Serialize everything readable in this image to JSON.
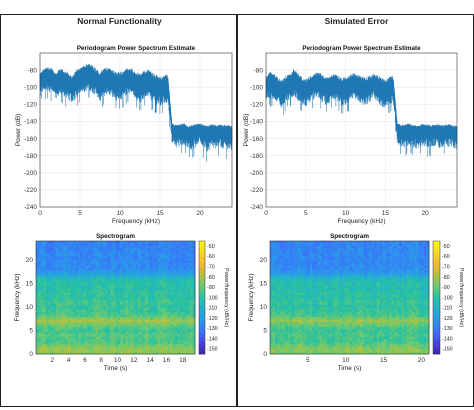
{
  "columns": [
    {
      "title": "Normal Functionality"
    },
    {
      "title": "Simulated Error"
    }
  ],
  "colors": {
    "psd_line": "#1f77b4",
    "grid": "#e6e6e6",
    "axis": "#333333",
    "colormap": [
      "#3e26a8",
      "#4745e1",
      "#3a73fb",
      "#2b98ea",
      "#24b0d0",
      "#26c1a3",
      "#6cc971",
      "#b6c13c",
      "#f5b834",
      "#f8d826",
      "#f9fb15"
    ]
  },
  "chart_data": [
    {
      "type": "line",
      "panel": "Normal Functionality",
      "title": "Periodogram Power Spectrum Estimate",
      "xlabel": "Frequency (kHz)",
      "ylabel": "Power (dB)",
      "xlim": [
        0,
        24
      ],
      "ylim": [
        -240,
        -60
      ],
      "xticks": [
        0,
        5,
        10,
        15,
        20
      ],
      "yticks": [
        -80,
        -100,
        -120,
        -140,
        -160,
        -180,
        -200,
        -220,
        -240
      ],
      "grid": true,
      "series": [
        {
          "x": [
            0,
            0.5,
            1,
            1.5,
            2,
            2.5,
            3,
            3.5,
            4,
            4.5,
            5,
            5.5,
            6,
            6.5,
            7,
            7.5,
            8,
            8.5,
            9,
            9.5,
            10,
            10.5,
            11,
            11.5,
            12,
            12.5,
            13,
            13.5,
            14,
            14.5,
            15,
            15.5,
            16,
            16.5,
            17,
            17.5,
            18,
            18.5,
            19,
            19.5,
            20,
            20.5,
            21,
            21.5,
            22,
            22.5,
            23,
            23.5,
            24
          ],
          "y": [
            -92,
            -88,
            -86,
            -88,
            -95,
            -89,
            -91,
            -94,
            -98,
            -91,
            -89,
            -87,
            -84,
            -86,
            -90,
            -95,
            -90,
            -88,
            -91,
            -94,
            -94,
            -92,
            -88,
            -90,
            -94,
            -96,
            -93,
            -91,
            -95,
            -97,
            -99,
            -98,
            -96,
            -148,
            -150,
            -149,
            -148,
            -151,
            -150,
            -149,
            -148,
            -150,
            -151,
            -149,
            -150,
            -149,
            -150,
            -150,
            -151
          ],
          "band_high": [
            -84,
            -78,
            -76,
            -78,
            -84,
            -77,
            -80,
            -82,
            -86,
            -80,
            -77,
            -74,
            -72,
            -74,
            -78,
            -82,
            -78,
            -76,
            -79,
            -82,
            -82,
            -80,
            -76,
            -78,
            -82,
            -84,
            -81,
            -79,
            -83,
            -85,
            -87,
            -86,
            -84,
            -142,
            -144,
            -143,
            -142,
            -145,
            -144,
            -143,
            -142,
            -144,
            -145,
            -143,
            -144,
            -143,
            -144,
            -144,
            -145
          ],
          "band_low": [
            -108,
            -112,
            -110,
            -115,
            -120,
            -116,
            -118,
            -122,
            -130,
            -120,
            -115,
            -112,
            -110,
            -113,
            -118,
            -125,
            -118,
            -114,
            -118,
            -124,
            -124,
            -120,
            -114,
            -116,
            -122,
            -126,
            -120,
            -117,
            -124,
            -128,
            -130,
            -128,
            -125,
            -172,
            -180,
            -176,
            -175,
            -178,
            -182,
            -177,
            -175,
            -179,
            -186,
            -176,
            -181,
            -178,
            -180,
            -182,
            -184
          ]
        }
      ]
    },
    {
      "type": "line",
      "panel": "Simulated Error",
      "title": "Periodogram Power Spectrum Estimate",
      "xlabel": "Frequency (kHz)",
      "ylabel": "Power (dB)",
      "xlim": [
        0,
        24
      ],
      "ylim": [
        -240,
        -60
      ],
      "xticks": [
        0,
        5,
        10,
        15,
        20
      ],
      "yticks": [
        -80,
        -100,
        -120,
        -140,
        -160,
        -180,
        -200,
        -220,
        -240
      ],
      "grid": true,
      "series": [
        {
          "x": [
            0,
            0.5,
            1,
            1.5,
            2,
            2.5,
            3,
            3.5,
            4,
            4.5,
            5,
            5.5,
            6,
            6.5,
            7,
            7.5,
            8,
            8.5,
            9,
            9.5,
            10,
            10.5,
            11,
            11.5,
            12,
            12.5,
            13,
            13.5,
            14,
            14.5,
            15,
            15.5,
            16,
            16.5,
            17,
            17.5,
            18,
            18.5,
            19,
            19.5,
            20,
            20.5,
            21,
            21.5,
            22,
            22.5,
            23,
            23.5,
            24
          ],
          "y": [
            -98,
            -94,
            -96,
            -100,
            -104,
            -98,
            -96,
            -93,
            -96,
            -100,
            -102,
            -99,
            -96,
            -94,
            -97,
            -100,
            -99,
            -96,
            -98,
            -101,
            -100,
            -98,
            -95,
            -97,
            -99,
            -101,
            -98,
            -96,
            -98,
            -101,
            -103,
            -100,
            -98,
            -148,
            -150,
            -149,
            -148,
            -150,
            -151,
            -149,
            -149,
            -150,
            -150,
            -149,
            -150,
            -150,
            -149,
            -150,
            -151
          ],
          "band_high": [
            -88,
            -82,
            -84,
            -88,
            -92,
            -86,
            -84,
            -79,
            -82,
            -88,
            -90,
            -87,
            -84,
            -81,
            -85,
            -88,
            -87,
            -84,
            -86,
            -89,
            -88,
            -86,
            -83,
            -85,
            -87,
            -89,
            -86,
            -84,
            -86,
            -89,
            -91,
            -88,
            -86,
            -142,
            -144,
            -143,
            -142,
            -144,
            -145,
            -143,
            -143,
            -144,
            -144,
            -143,
            -144,
            -144,
            -143,
            -144,
            -145
          ],
          "band_low": [
            -118,
            -120,
            -122,
            -126,
            -132,
            -124,
            -120,
            -118,
            -122,
            -128,
            -130,
            -125,
            -120,
            -118,
            -124,
            -128,
            -126,
            -120,
            -124,
            -130,
            -128,
            -124,
            -119,
            -122,
            -126,
            -130,
            -124,
            -120,
            -124,
            -130,
            -132,
            -128,
            -124,
            -172,
            -176,
            -178,
            -175,
            -177,
            -180,
            -176,
            -177,
            -178,
            -176,
            -177,
            -179,
            -176,
            -177,
            -178,
            -180
          ]
        }
      ]
    },
    {
      "type": "heatmap",
      "panel": "Normal Functionality",
      "title": "Spectrogram",
      "xlabel": "Time (s)",
      "ylabel": "Frequency (kHz)",
      "colorbar_label": "Power/frequency (dB/Hz)",
      "xlim": [
        0,
        19.5
      ],
      "ylim": [
        0,
        24
      ],
      "xticks": [
        2,
        4,
        6,
        8,
        10,
        12,
        14,
        16,
        18
      ],
      "yticks": [
        0,
        5,
        10,
        15,
        20
      ],
      "clim": [
        -155,
        -45
      ],
      "cticks": [
        -50,
        -60,
        -70,
        -80,
        -90,
        -100,
        -110,
        -120,
        -130,
        -140,
        -150
      ],
      "freq_profile_khz": [
        0,
        1,
        2,
        3,
        4,
        5,
        6,
        7,
        8,
        9,
        10,
        11,
        12,
        13,
        14,
        15,
        16,
        17,
        18,
        19,
        20,
        21,
        22,
        23,
        24
      ],
      "freq_profile_db": [
        -85,
        -82,
        -90,
        -95,
        -92,
        -96,
        -90,
        -80,
        -92,
        -96,
        -98,
        -95,
        -100,
        -98,
        -102,
        -100,
        -105,
        -118,
        -125,
        -126,
        -127,
        -126,
        -127,
        -128,
        -128
      ]
    },
    {
      "type": "heatmap",
      "panel": "Simulated Error",
      "title": "Spectrogram",
      "xlabel": "Time (s)",
      "ylabel": "Frequency (kHz)",
      "colorbar_label": "Power/frequency (dB/Hz)",
      "xlim": [
        0,
        21
      ],
      "ylim": [
        0,
        24
      ],
      "xticks": [
        5,
        10,
        15,
        20
      ],
      "yticks": [
        0,
        5,
        10,
        15,
        20
      ],
      "clim": [
        -155,
        -45
      ],
      "cticks": [
        -50,
        -60,
        -70,
        -80,
        -90,
        -100,
        -110,
        -120,
        -130,
        -140,
        -150
      ],
      "freq_profile_khz": [
        0,
        1,
        2,
        3,
        4,
        5,
        6,
        7,
        8,
        9,
        10,
        11,
        12,
        13,
        14,
        15,
        16,
        17,
        18,
        19,
        20,
        21,
        22,
        23,
        24
      ],
      "freq_profile_db": [
        -88,
        -84,
        -92,
        -97,
        -94,
        -98,
        -92,
        -83,
        -94,
        -98,
        -100,
        -97,
        -102,
        -100,
        -104,
        -102,
        -107,
        -120,
        -126,
        -127,
        -127,
        -127,
        -128,
        -128,
        -128
      ]
    }
  ]
}
